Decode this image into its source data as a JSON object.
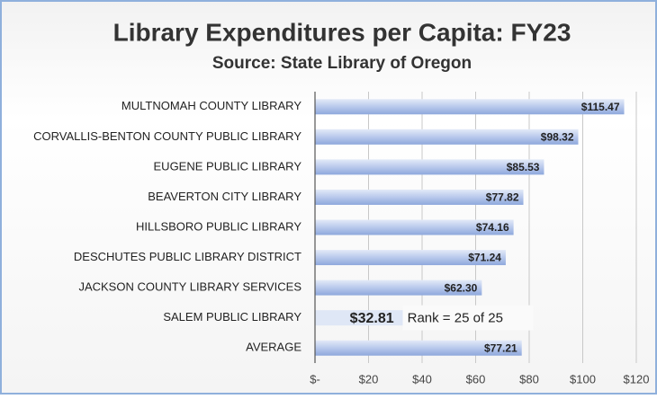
{
  "chart_data": {
    "type": "bar",
    "orientation": "horizontal",
    "title": "Library Expenditures per Capita: FY23",
    "subtitle": "Source: State Library of Oregon",
    "categories": [
      "MULTNOMAH COUNTY LIBRARY",
      "CORVALLIS-BENTON COUNTY PUBLIC LIBRARY",
      "EUGENE PUBLIC LIBRARY",
      "BEAVERTON CITY LIBRARY",
      "HILLSBORO PUBLIC LIBRARY",
      "DESCHUTES PUBLIC LIBRARY DISTRICT",
      "JACKSON COUNTY LIBRARY SERVICES",
      "SALEM PUBLIC LIBRARY",
      "AVERAGE"
    ],
    "values": [
      115.47,
      98.32,
      85.53,
      77.82,
      74.16,
      71.24,
      62.3,
      32.81,
      77.21
    ],
    "value_labels": [
      "$115.47",
      "$98.32",
      "$85.53",
      "$77.82",
      "$74.16",
      "$71.24",
      "$62.30",
      "$32.81",
      "$77.21"
    ],
    "color": "#9fb6e2",
    "annotation": "Rank = 25 of 25",
    "xlim": [
      0,
      120
    ],
    "xticks": [
      {
        "value": 0,
        "label": "$-"
      },
      {
        "value": 20,
        "label": "$20"
      },
      {
        "value": 40,
        "label": "$40"
      },
      {
        "value": 60,
        "label": "$60"
      },
      {
        "value": 80,
        "label": "$80"
      },
      {
        "value": 100,
        "label": "$100"
      },
      {
        "value": 120,
        "label": "$120"
      }
    ],
    "grid": true
  }
}
